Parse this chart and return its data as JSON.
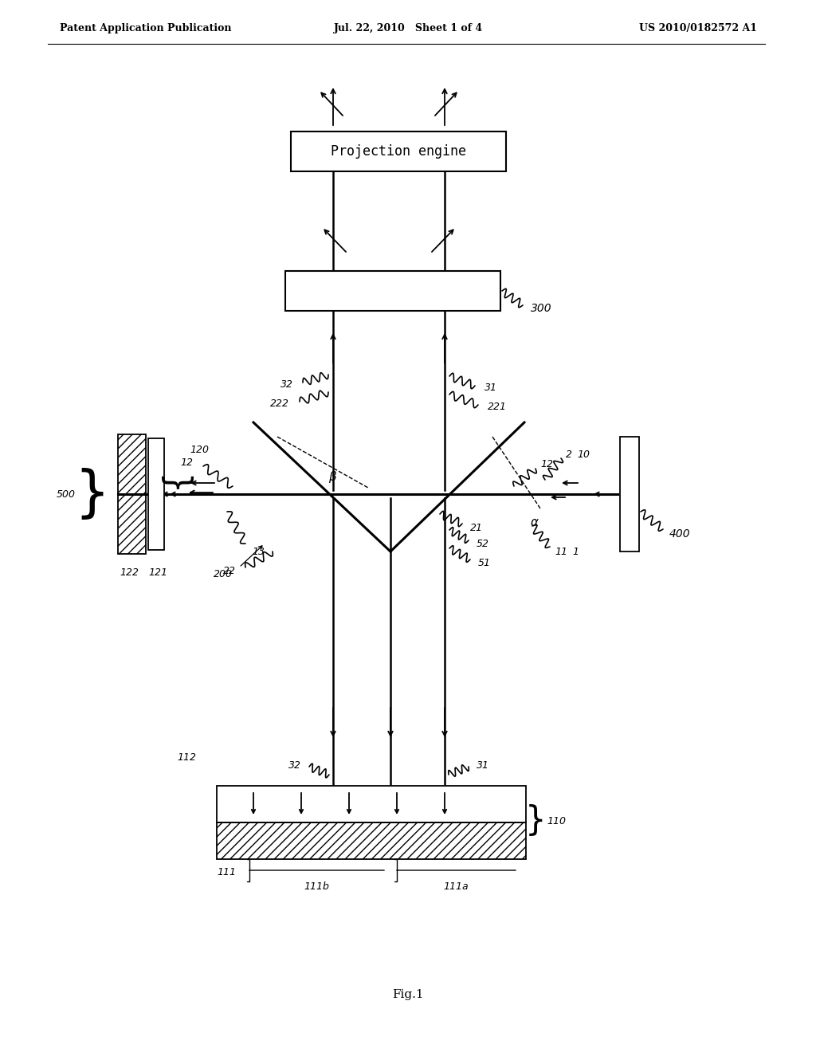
{
  "bg_color": "#ffffff",
  "line_color": "#000000",
  "header_left": "Patent Application Publication",
  "header_center": "Jul. 22, 2010   Sheet 1 of 4",
  "header_right": "US 2010/0182572 A1",
  "title_box_text": "Projection engine",
  "fig_label": "Fig.1"
}
